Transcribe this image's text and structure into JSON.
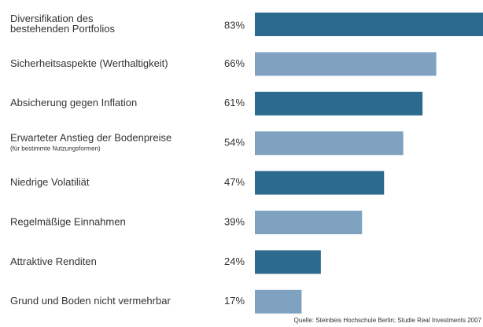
{
  "chart_data": {
    "type": "barh",
    "categories": [
      [
        "Diversifikation des",
        "bestehenden Portfolios"
      ],
      [
        "Sicherheitsaspekte (Werthaltigkeit)"
      ],
      [
        "Absicherung gegen Inflation"
      ],
      [
        "Erwarteter Anstieg der Bodenpreise"
      ],
      [
        "Niedrige Volatiliät"
      ],
      [
        "Regelmäßige Einnahmen"
      ],
      [
        "Attraktive Renditen"
      ],
      [
        "Grund und Boden nicht vermehrbar"
      ]
    ],
    "sublabels": [
      null,
      null,
      null,
      "(für bestimmte Nutzungsformen)",
      null,
      null,
      null,
      null
    ],
    "values": [
      83,
      66,
      61,
      54,
      47,
      39,
      24,
      17
    ],
    "value_labels": [
      "83%",
      "66%",
      "61%",
      "54%",
      "47%",
      "39%",
      "24%",
      "17%"
    ],
    "colors": [
      "#2c6b8e",
      "#7fa2c0",
      "#2c6b8e",
      "#7fa2c0",
      "#2c6b8e",
      "#7fa2c0",
      "#2c6b8e",
      "#7fa2c0"
    ],
    "source": "Quelle: Steinbeis Hochschule Berlin; Studie Real Investments 2007"
  }
}
